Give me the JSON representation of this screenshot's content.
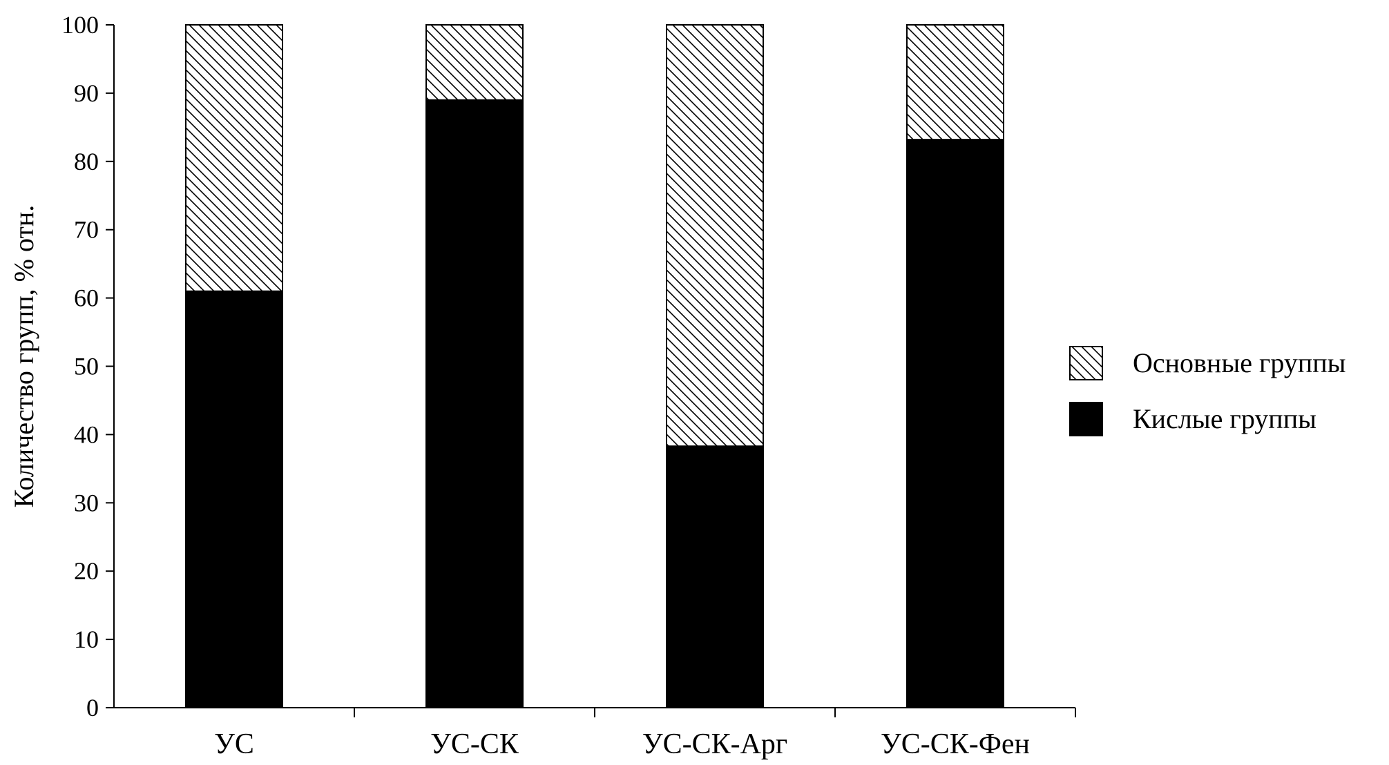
{
  "chart_data": {
    "type": "bar",
    "stacked": true,
    "categories": [
      "УС",
      "УС-СК",
      "УС-СК-Арг",
      "УС-СК-Фен"
    ],
    "series": [
      {
        "name": "Кислые группы",
        "values": [
          61,
          89,
          38.3,
          83.2
        ],
        "color": "#000000",
        "fill": "solid"
      },
      {
        "name": "Основные группы",
        "values": [
          39,
          11,
          61.7,
          16.8
        ],
        "color": "#000000",
        "fill": "diagonal-hatch"
      }
    ],
    "xlabel": "",
    "ylabel": "Количество групп, % отн.",
    "ylim": [
      0,
      100
    ],
    "yticks": [
      0,
      10,
      20,
      30,
      40,
      50,
      60,
      70,
      80,
      90,
      100
    ],
    "grid": false,
    "legend": {
      "placement": "right",
      "entries": [
        "Основные группы",
        "Кислые группы"
      ]
    }
  }
}
